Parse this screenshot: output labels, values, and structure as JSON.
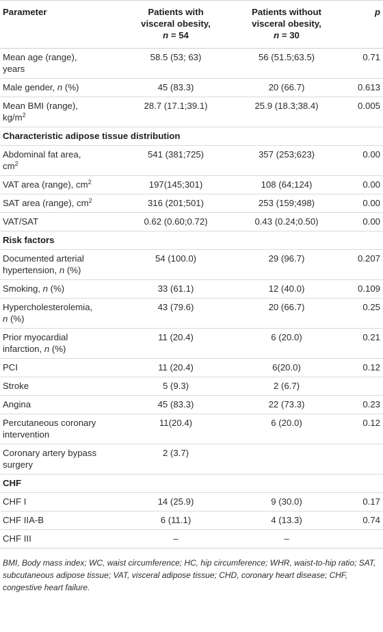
{
  "header": {
    "param": "Parameter",
    "g1_line1": "Patients with",
    "g1_line2": "visceral obesity,",
    "g1_n": "n",
    "g1_eq": " = 54",
    "g2_line1": "Patients without",
    "g2_line2": "visceral obesity,",
    "g2_n": "n",
    "g2_eq": " = 30",
    "p": "p"
  },
  "rows": [
    {
      "type": "row",
      "label": [
        "Mean age (range),",
        "years"
      ],
      "a": "58.5 (53; 63)",
      "b": "56 (51.5;63.5)",
      "p": "0.71"
    },
    {
      "type": "row",
      "label_pre": "Male gender, ",
      "label_em": "n",
      "label_post": " (%)",
      "a": "45 (83.3)",
      "b": "20 (66.7)",
      "p": "0.613"
    },
    {
      "type": "row",
      "label": [
        "Mean BMI (range),",
        "kg/m"
      ],
      "sup": "2",
      "a": "28.7 (17.1;39.1)",
      "b": "25.9 (18.3;38.4)",
      "p": "0.005"
    },
    {
      "type": "section",
      "label": "Characteristic adipose tissue distribution"
    },
    {
      "type": "row",
      "label": [
        "Abdominal fat area,",
        "cm"
      ],
      "sup": "2",
      "a": "541 (381;725)",
      "b": "357 (253;623)",
      "p": "0.00"
    },
    {
      "type": "row",
      "label": [
        "VAT area (range), cm"
      ],
      "sup": "2",
      "a": "197(145;301)",
      "b": "108 (64;124)",
      "p": "0.00"
    },
    {
      "type": "row",
      "label": [
        "SAT area (range), cm"
      ],
      "sup": "2",
      "a": "316 (201;501)",
      "b": "253 (159;498)",
      "p": "0.00"
    },
    {
      "type": "row",
      "label": [
        "VAT/SAT"
      ],
      "a": "0.62 (0.60;0.72)",
      "b": "0.43 (0.24;0.50)",
      "p": "0.00"
    },
    {
      "type": "section",
      "label": "Risk factors"
    },
    {
      "type": "row",
      "label": [
        "Documented arterial",
        "hypertension, "
      ],
      "em_after": "n",
      "post": " (%)",
      "a": "54 (100.0)",
      "b": "29 (96.7)",
      "p": "0.207"
    },
    {
      "type": "row",
      "label_pre": "Smoking, ",
      "label_em": "n",
      "label_post": " (%)",
      "a": "33 (61.1)",
      "b": "12 (40.0)",
      "p": "0.109"
    },
    {
      "type": "row",
      "label": [
        "Hypercholesterolemia,",
        ""
      ],
      "em_after": "n",
      "post": " (%)",
      "a": "43 (79.6)",
      "b": "20 (66.7)",
      "p": "0.25"
    },
    {
      "type": "row",
      "label": [
        "Prior myocardial",
        "infarction, "
      ],
      "em_after": "n",
      "post": " (%)",
      "a": "11 (20.4)",
      "b": "6 (20.0)",
      "p": "0.21"
    },
    {
      "type": "row",
      "label": [
        "PCI"
      ],
      "a": "11 (20.4)",
      "b": "6(20.0)",
      "p": "0.12"
    },
    {
      "type": "row",
      "label": [
        "Stroke"
      ],
      "a": "5 (9.3)",
      "b": "2 (6.7)",
      "p": ""
    },
    {
      "type": "row",
      "label": [
        "Angina"
      ],
      "a": "45 (83.3)",
      "b": "22 (73.3)",
      "p": "0.23"
    },
    {
      "type": "row",
      "label": [
        "Percutaneous coronary",
        "intervention"
      ],
      "a": "11(20.4)",
      "b": "6 (20.0)",
      "p": "0.12"
    },
    {
      "type": "row",
      "label": [
        "Coronary artery bypass",
        "surgery"
      ],
      "a": "2 (3.7)",
      "b": "",
      "p": ""
    },
    {
      "type": "section",
      "label": "CHF"
    },
    {
      "type": "row",
      "label": [
        "CHF I"
      ],
      "a": "14 (25.9)",
      "b": "9 (30.0)",
      "p": "0.17"
    },
    {
      "type": "row",
      "label": [
        "CHF IIA-B"
      ],
      "a": "6 (11.1)",
      "b": "4 (13.3)",
      "p": "0.74"
    },
    {
      "type": "row",
      "label": [
        "CHF III"
      ],
      "a": "–",
      "b": "–",
      "p": ""
    }
  ],
  "footnote": "BMI, Body mass index; WC, waist circumference; HC, hip circumference; WHR, waist-to-hip ratio; SAT, subcutaneous adipose tissue; VAT, visceral adipose tissue; CHD, coronary heart disease; CHF, congestive heart failure."
}
